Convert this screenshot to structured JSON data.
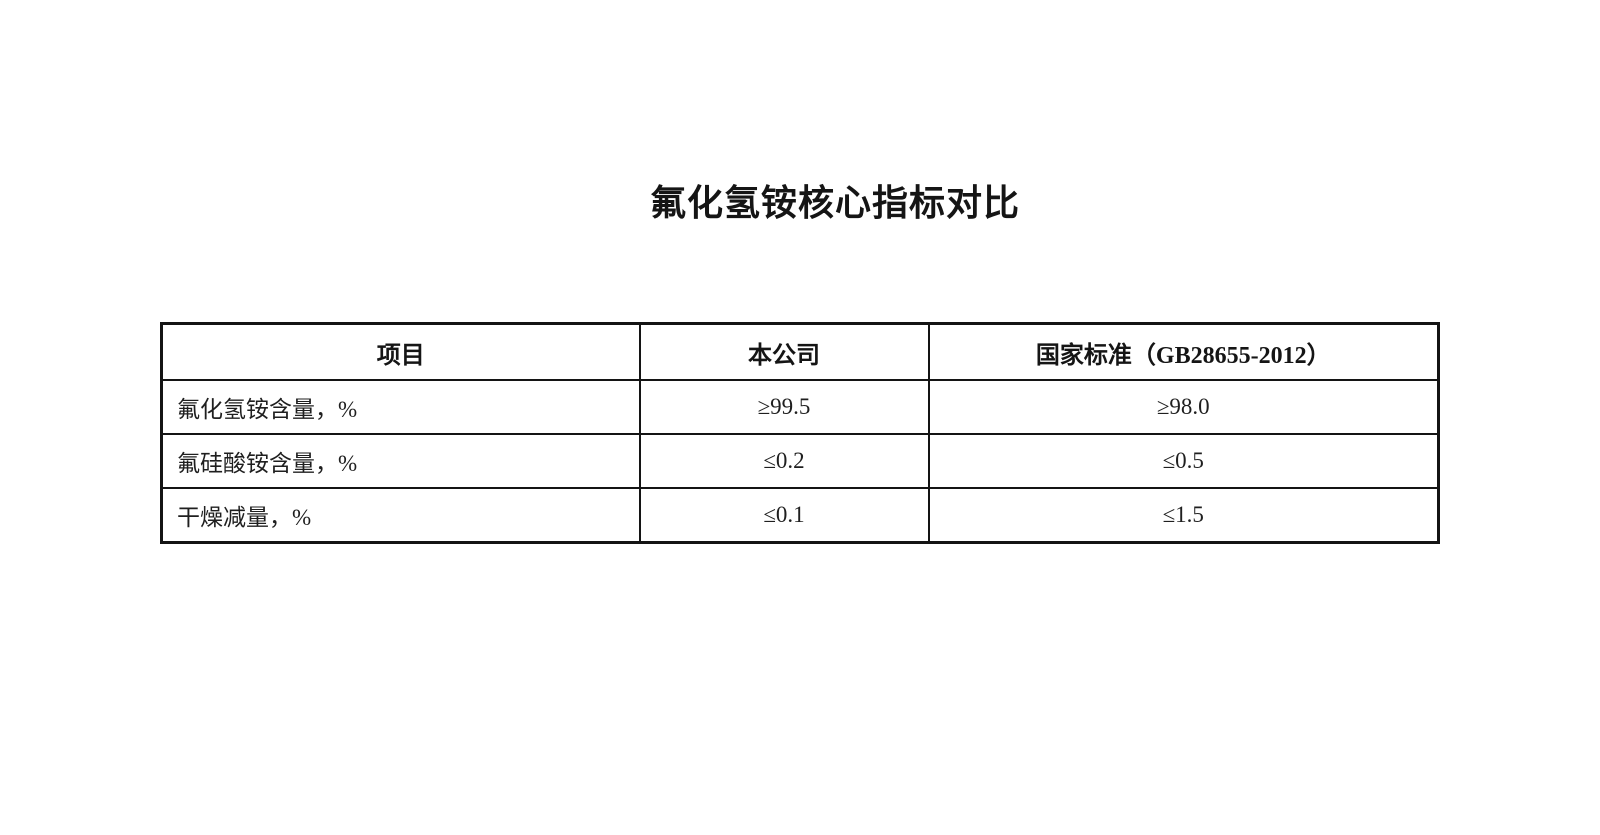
{
  "page": {
    "title": "氟化氢铵核心指标对比"
  },
  "table": {
    "columns": [
      {
        "label": "项目"
      },
      {
        "label": "本公司"
      },
      {
        "label": "国家标准（GB28655-2012）"
      }
    ],
    "rows": [
      {
        "item": "氟化氢铵含量，%",
        "company": "≥99.5",
        "standard": "≥98.0"
      },
      {
        "item": "氟硅酸铵含量，%",
        "company": "≤0.2",
        "standard": "≤0.5"
      },
      {
        "item": "干燥减量，%",
        "company": "≤0.1",
        "standard": "≤1.5"
      }
    ]
  }
}
